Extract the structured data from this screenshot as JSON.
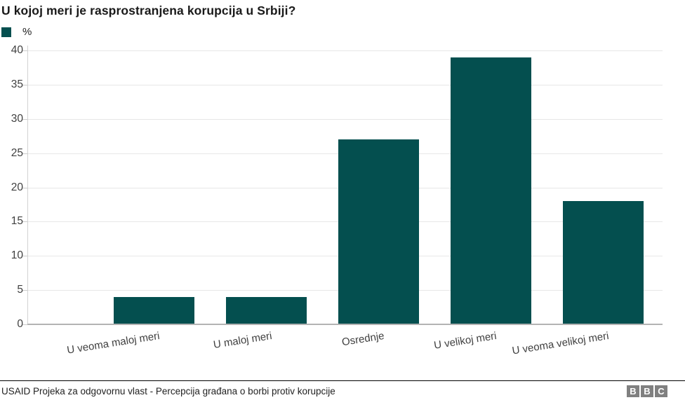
{
  "title": "U kojoj meri je rasprostranjena korupcija u Srbiji?",
  "legend": {
    "label": "%",
    "swatch_color": "#044F4F"
  },
  "chart_data": {
    "type": "bar",
    "title": "U kojoj meri je rasprostranjena korupcija u Srbiji?",
    "categories": [
      "U veoma maloj meri",
      "U maloj meri",
      "Osrednje",
      "U velikoj meri",
      "U veoma velikoj meri"
    ],
    "values": [
      4,
      4,
      27,
      39,
      18
    ],
    "xlabel": "",
    "ylabel": "%",
    "ylim": [
      0,
      40
    ],
    "ytick_step": 5,
    "yticks": [
      0,
      5,
      10,
      15,
      20,
      25,
      30,
      35,
      40
    ],
    "bar_color": "#044F4F",
    "grid": "horizontal",
    "legend_position": "top-left"
  },
  "footer": {
    "source": "USAID Projeka za odgovornu vlast - Percepcija građana o borbi protiv korupcije",
    "logo_letters": [
      "B",
      "B",
      "C"
    ]
  },
  "colors": {
    "bar": "#044F4F",
    "gridline": "#e7e7e7",
    "zero_line": "#b3b3b3",
    "axis": "#d2d2d2",
    "tick_label": "#404040",
    "title_text": "#1a1a1a",
    "footer_text": "#222222",
    "bbc_gray": "#808080"
  }
}
